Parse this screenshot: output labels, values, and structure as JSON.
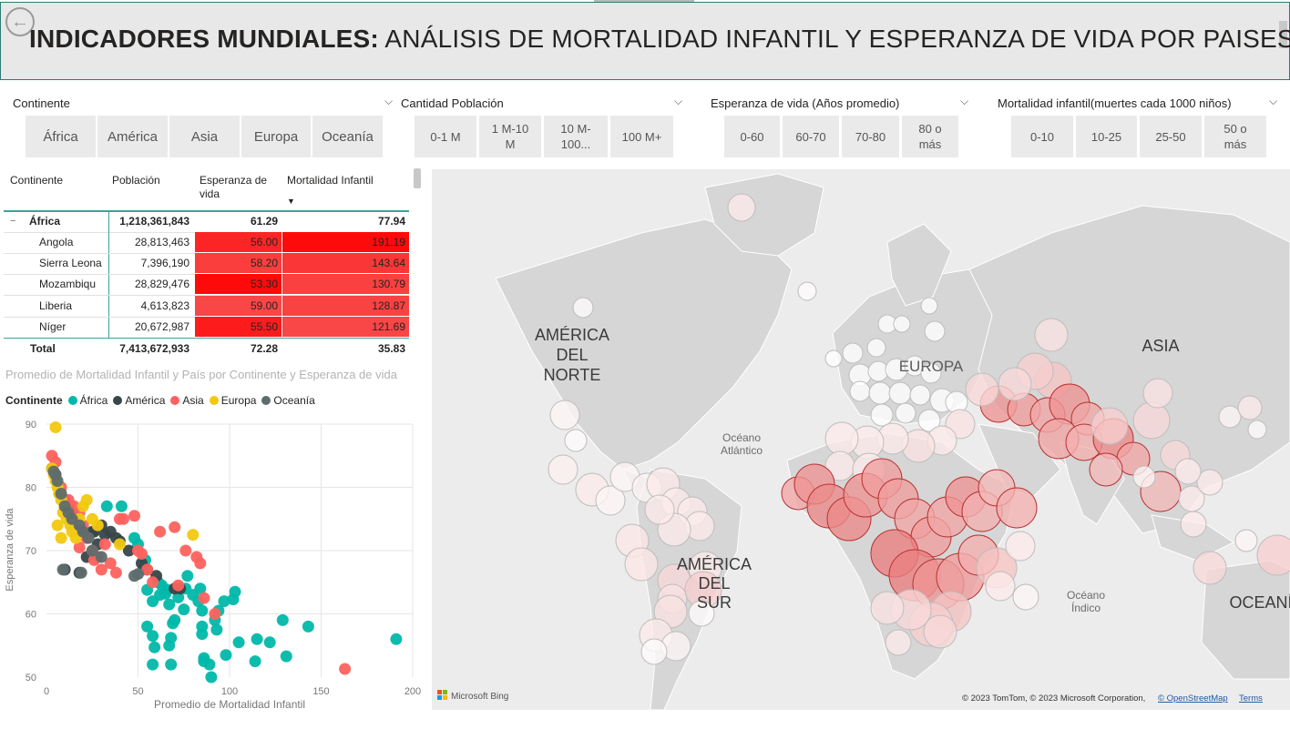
{
  "header": {
    "back_icon": "back-arrow-icon",
    "title_bold": "INDICADORES MUNDIALES:",
    "title_rest": " ANÁLISIS DE MORTALIDAD INFANTIL Y ESPERANZA DE VIDA POR PAISES"
  },
  "slicers": {
    "continente": {
      "label": "Continente",
      "options": [
        "África",
        "América",
        "Asia",
        "Europa",
        "Oceanía"
      ]
    },
    "poblacion": {
      "label": "Cantidad Población",
      "options": [
        "0-1 M",
        "1 M-10 M",
        "10 M-100...",
        "100 M+"
      ]
    },
    "esperanza": {
      "label": "Esperanza de vida (Años promedio)",
      "options": [
        "0-60",
        "60-70",
        "70-80",
        "80 o más"
      ]
    },
    "mortalidad": {
      "label": "Mortalidad infantil(muertes cada 1000 niños)",
      "options": [
        "0-10",
        "10-25",
        "25-50",
        "50 o más"
      ]
    }
  },
  "table": {
    "headers": {
      "continente": "Continente",
      "poblacion": "Población",
      "esperanza": "Esperanza de vida",
      "mortalidad": "Mortalidad Infantil"
    },
    "group": {
      "name": "África",
      "poblacion": "1,218,361,843",
      "esperanza": "61.29",
      "mortalidad": "77.94",
      "toggle": "−"
    },
    "rows": [
      {
        "pais": "Angola",
        "poblacion": "28,813,463",
        "esperanza": "56.00",
        "mortalidad": "191.19",
        "esp_level": 0.85,
        "mort_level": 1.0
      },
      {
        "pais": "Sierra Leona",
        "poblacion": "7,396,190",
        "esperanza": "58.20",
        "mortalidad": "143.64",
        "esp_level": 0.7,
        "mort_level": 0.75
      },
      {
        "pais": "Mozambiqu",
        "poblacion": "28,829,476",
        "esperanza": "53.30",
        "mortalidad": "130.79",
        "esp_level": 1.0,
        "mort_level": 0.68
      },
      {
        "pais": "Liberia",
        "poblacion": "4,613,823",
        "esperanza": "59.00",
        "mortalidad": "128.87",
        "esp_level": 0.65,
        "mort_level": 0.67
      },
      {
        "pais": "Níger",
        "poblacion": "20,672,987",
        "esperanza": "55.50",
        "mortalidad": "121.69",
        "esp_level": 0.9,
        "mort_level": 0.64
      }
    ],
    "total": {
      "label": "Total",
      "poblacion": "7,413,672,933",
      "esperanza": "72.28",
      "mortalidad": "35.83"
    }
  },
  "scatter": {
    "title": "Promedio de Mortalidad Infantil y País por Continente y Esperanza de vida",
    "legend_title": "Continente",
    "legend": [
      {
        "name": "África",
        "color": "#01b8aa"
      },
      {
        "name": "América",
        "color": "#374649"
      },
      {
        "name": "Asia",
        "color": "#fd625e"
      },
      {
        "name": "Europa",
        "color": "#f2c80f"
      },
      {
        "name": "Oceanía",
        "color": "#5f6b6d"
      }
    ],
    "xlabel": "Promedio de Mortalidad Infantil",
    "ylabel": "Esperanza de vida",
    "xticks": [
      "0",
      "50",
      "100",
      "150",
      "200"
    ],
    "yticks": [
      "50",
      "60",
      "70",
      "80",
      "90"
    ]
  },
  "chart_data": {
    "type": "scatter",
    "title": "Promedio de Mortalidad Infantil y País por Continente y Esperanza de vida",
    "xlabel": "Promedio de Mortalidad Infantil",
    "ylabel": "Esperanza de vida",
    "xlim": [
      0,
      200
    ],
    "ylim": [
      50,
      90
    ],
    "legend": "top-left",
    "grid": true,
    "series": [
      {
        "name": "África",
        "points": [
          [
            191,
            56
          ],
          [
            143,
            58
          ],
          [
            131,
            53.3
          ],
          [
            129,
            59
          ],
          [
            122,
            55.5
          ],
          [
            115,
            56
          ],
          [
            114,
            52.5
          ],
          [
            105,
            55.5
          ],
          [
            103,
            63.5
          ],
          [
            102,
            62.3
          ],
          [
            98,
            53.5
          ],
          [
            97,
            62
          ],
          [
            93,
            57.5
          ],
          [
            94,
            60.5
          ],
          [
            92,
            59
          ],
          [
            90,
            50
          ],
          [
            89,
            52
          ],
          [
            86,
            53
          ],
          [
            85,
            56.8
          ],
          [
            86,
            52.5
          ],
          [
            85,
            60.5
          ],
          [
            85,
            58
          ],
          [
            84,
            64
          ],
          [
            83,
            62
          ],
          [
            80,
            63
          ],
          [
            77,
            66
          ],
          [
            76,
            64
          ],
          [
            75,
            60.7
          ],
          [
            72,
            62.6
          ],
          [
            70,
            59
          ],
          [
            69,
            58.5
          ],
          [
            68,
            56.2
          ],
          [
            68,
            52
          ],
          [
            67,
            55
          ],
          [
            67,
            61.5
          ],
          [
            66,
            63.8
          ],
          [
            65,
            63.2
          ],
          [
            63,
            64.5
          ],
          [
            62,
            63
          ],
          [
            61,
            65
          ],
          [
            59,
            54.7
          ],
          [
            58,
            52
          ],
          [
            58,
            56.5
          ],
          [
            58,
            62
          ],
          [
            55,
            58
          ],
          [
            55,
            63.8
          ],
          [
            54,
            68.5
          ],
          [
            53,
            67
          ],
          [
            50,
            71
          ],
          [
            48,
            72
          ],
          [
            41,
            77
          ],
          [
            33,
            77
          ]
        ]
      },
      {
        "name": "América",
        "points": [
          [
            3,
            83
          ],
          [
            5,
            82
          ],
          [
            7,
            79
          ],
          [
            10,
            78
          ],
          [
            12,
            77
          ],
          [
            14,
            76
          ],
          [
            16,
            75
          ],
          [
            18,
            74
          ],
          [
            20,
            73
          ],
          [
            22,
            72
          ],
          [
            25,
            73
          ],
          [
            28,
            71
          ],
          [
            30,
            74
          ],
          [
            32,
            72.5
          ],
          [
            35,
            73
          ],
          [
            38,
            72
          ],
          [
            40,
            71.5
          ],
          [
            45,
            70
          ],
          [
            52,
            68
          ],
          [
            55,
            67
          ],
          [
            60,
            66
          ],
          [
            70,
            64
          ],
          [
            73,
            64
          ],
          [
            10,
            67
          ],
          [
            18,
            66.5
          ],
          [
            22,
            69
          ],
          [
            26,
            73
          ]
        ]
      },
      {
        "name": "Asia",
        "points": [
          [
            3,
            85
          ],
          [
            5,
            84
          ],
          [
            8,
            80
          ],
          [
            12,
            78
          ],
          [
            15,
            77
          ],
          [
            18,
            76
          ],
          [
            20,
            74
          ],
          [
            22,
            72
          ],
          [
            25,
            70
          ],
          [
            28,
            69
          ],
          [
            32,
            71
          ],
          [
            35,
            68
          ],
          [
            38,
            66.5
          ],
          [
            40,
            75
          ],
          [
            42,
            75
          ],
          [
            48,
            75.5
          ],
          [
            50,
            70
          ],
          [
            52,
            69.5
          ],
          [
            55,
            67
          ],
          [
            58,
            65
          ],
          [
            62,
            73
          ],
          [
            70,
            73.7
          ],
          [
            72,
            64.5
          ],
          [
            76,
            70
          ],
          [
            82,
            69
          ],
          [
            84,
            68
          ],
          [
            86,
            62.5
          ],
          [
            92,
            60
          ],
          [
            18,
            70.5
          ],
          [
            26,
            68.5
          ],
          [
            30,
            67
          ],
          [
            163,
            51.3
          ]
        ]
      },
      {
        "name": "Europa",
        "points": [
          [
            5,
            89.5
          ],
          [
            3,
            83
          ],
          [
            4,
            82
          ],
          [
            5,
            81
          ],
          [
            6,
            80
          ],
          [
            7,
            79
          ],
          [
            8,
            78
          ],
          [
            9,
            76
          ],
          [
            10,
            77
          ],
          [
            11,
            75
          ],
          [
            12,
            76
          ],
          [
            13,
            74
          ],
          [
            14,
            73
          ],
          [
            16,
            72
          ],
          [
            18,
            75
          ],
          [
            20,
            77
          ],
          [
            22,
            78
          ],
          [
            25,
            75
          ],
          [
            28,
            74
          ],
          [
            40,
            71
          ],
          [
            80,
            72.5
          ],
          [
            6,
            74
          ],
          [
            8,
            72
          ]
        ]
      },
      {
        "name": "Oceanía",
        "points": [
          [
            4,
            82.5
          ],
          [
            5,
            82
          ],
          [
            6,
            81
          ],
          [
            8,
            79
          ],
          [
            10,
            77
          ],
          [
            12,
            76
          ],
          [
            14,
            75
          ],
          [
            18,
            74
          ],
          [
            20,
            73
          ],
          [
            23,
            72
          ],
          [
            25,
            70
          ],
          [
            30,
            69
          ],
          [
            9,
            67
          ],
          [
            19,
            66.5
          ],
          [
            48,
            66
          ],
          [
            50,
            66.3
          ]
        ]
      }
    ]
  },
  "map": {
    "labels": {
      "north_america": [
        "AMÉRICA",
        "DEL",
        "NORTE"
      ],
      "south_america": [
        "AMÉRICA",
        "DEL",
        "SUR"
      ],
      "asia": "ASIA",
      "europa": "EUROPA",
      "oceania": "OCEANÍ",
      "atlantico": [
        "Océano",
        "Atlántico"
      ],
      "indico": [
        "Océano",
        "Índico"
      ]
    },
    "bing_logo": "Microsoft Bing",
    "attribution": "© 2023 TomTom, © 2023 Microsoft Corporation,",
    "osm_link": "© OpenStreetMap",
    "terms_link": "Terms",
    "colors": {
      "land": "#d6d6d6",
      "sea": "#ececec",
      "bubble_hi": "#e03a3a",
      "bubble_lo": "#ffffff"
    }
  }
}
